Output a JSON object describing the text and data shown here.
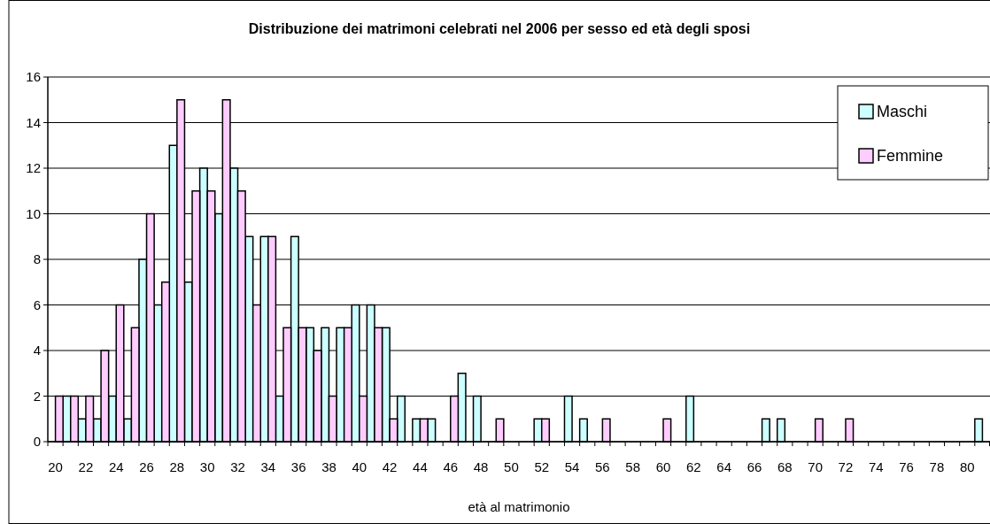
{
  "chart_data": {
    "type": "bar",
    "title": "Distribuzione dei matrimoni celebrati nel 2006 per sesso ed età degli sposi",
    "xlabel": "età al matrimonio",
    "categories": [
      "20",
      null,
      "22",
      null,
      "24",
      null,
      "26",
      null,
      "28",
      null,
      "30",
      null,
      "32",
      null,
      "34",
      null,
      "36",
      null,
      "38",
      null,
      "40",
      null,
      "42",
      null,
      "44",
      null,
      "46",
      null,
      "48",
      null,
      "50",
      null,
      "52",
      null,
      "54",
      null,
      "56",
      null,
      "58",
      null,
      "60",
      null,
      "62",
      null,
      "64",
      null,
      "66",
      null,
      "68",
      null,
      "70",
      null,
      "72",
      null,
      "74",
      null,
      "76",
      null,
      "78",
      null,
      "80",
      null
    ],
    "series": [
      {
        "name": "Maschi",
        "color": "#ccffff",
        "values": [
          0,
          2,
          1,
          1,
          2,
          1,
          8,
          6,
          13,
          7,
          12,
          10,
          12,
          9,
          9,
          2,
          9,
          5,
          5,
          5,
          6,
          6,
          5,
          2,
          1,
          1,
          0,
          3,
          2,
          0,
          0,
          0,
          1,
          0,
          2,
          1,
          0,
          0,
          0,
          0,
          0,
          0,
          2,
          0,
          0,
          0,
          0,
          1,
          1,
          0,
          0,
          0,
          0,
          0,
          0,
          0,
          0,
          0,
          0,
          0,
          0,
          1
        ]
      },
      {
        "name": "Femmine",
        "color": "#ffccff",
        "values": [
          2,
          2,
          2,
          4,
          6,
          5,
          10,
          7,
          15,
          11,
          11,
          15,
          11,
          6,
          9,
          5,
          5,
          4,
          2,
          5,
          2,
          5,
          1,
          0,
          1,
          0,
          2,
          0,
          0,
          1,
          0,
          0,
          1,
          0,
          0,
          0,
          1,
          0,
          0,
          0,
          1,
          0,
          0,
          0,
          0,
          0,
          0,
          0,
          0,
          0,
          1,
          0,
          1,
          0,
          0,
          0,
          0,
          0,
          0,
          0,
          0,
          0
        ]
      }
    ],
    "ylim": [
      0,
      16
    ],
    "yticks": [
      0,
      2,
      4,
      6,
      8,
      10,
      12,
      14,
      16
    ],
    "grid": "y",
    "legend": "top right"
  }
}
